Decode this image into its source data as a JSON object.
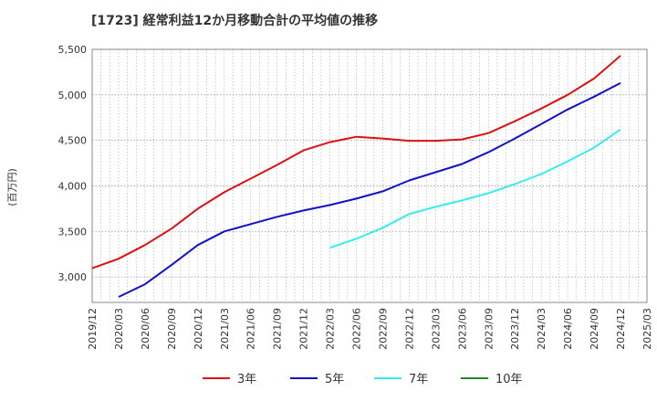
{
  "chart_data": {
    "type": "line",
    "title": "[1723]  経常利益12か月移動合計の平均値の推移",
    "ylabel": "(百万円)",
    "xlabel": "",
    "ylim": [
      2720,
      5500
    ],
    "yticks": [
      3000,
      3500,
      4000,
      4500,
      5000,
      5500
    ],
    "ytick_labels": [
      "3,000",
      "3,500",
      "4,000",
      "4,500",
      "5,000",
      "5,500"
    ],
    "x_range": [
      "2019-12",
      "2025-03"
    ],
    "x_tick_labels": [
      "2019/12",
      "2020/03",
      "2020/06",
      "2020/09",
      "2020/12",
      "2021/03",
      "2021/06",
      "2021/09",
      "2021/12",
      "2022/03",
      "2022/06",
      "2022/09",
      "2022/12",
      "2023/03",
      "2023/06",
      "2023/09",
      "2023/12",
      "2024/03",
      "2024/06",
      "2024/09",
      "2024/12",
      "2025/03"
    ],
    "grid": true,
    "legend_position": "bottom",
    "series": [
      {
        "name": "3年",
        "color": "#dd1111",
        "points": [
          [
            "2019-12",
            3095
          ],
          [
            "2020-03",
            3200
          ],
          [
            "2020-06",
            3350
          ],
          [
            "2020-09",
            3530
          ],
          [
            "2020-12",
            3750
          ],
          [
            "2021-03",
            3930
          ],
          [
            "2021-06",
            4080
          ],
          [
            "2021-09",
            4230
          ],
          [
            "2021-12",
            4390
          ],
          [
            "2022-03",
            4480
          ],
          [
            "2022-06",
            4540
          ],
          [
            "2022-09",
            4520
          ],
          [
            "2022-12",
            4495
          ],
          [
            "2023-03",
            4495
          ],
          [
            "2023-06",
            4510
          ],
          [
            "2023-09",
            4580
          ],
          [
            "2023-12",
            4710
          ],
          [
            "2024-03",
            4850
          ],
          [
            "2024-06",
            5000
          ],
          [
            "2024-09",
            5180
          ],
          [
            "2024-12",
            5430
          ]
        ]
      },
      {
        "name": "5年",
        "color": "#1111cc",
        "points": [
          [
            "2020-03",
            2780
          ],
          [
            "2020-06",
            2920
          ],
          [
            "2020-09",
            3130
          ],
          [
            "2020-12",
            3350
          ],
          [
            "2021-03",
            3500
          ],
          [
            "2021-06",
            3580
          ],
          [
            "2021-09",
            3660
          ],
          [
            "2021-12",
            3730
          ],
          [
            "2022-03",
            3790
          ],
          [
            "2022-06",
            3860
          ],
          [
            "2022-09",
            3940
          ],
          [
            "2022-12",
            4060
          ],
          [
            "2023-03",
            4150
          ],
          [
            "2023-06",
            4240
          ],
          [
            "2023-09",
            4370
          ],
          [
            "2023-12",
            4520
          ],
          [
            "2024-03",
            4680
          ],
          [
            "2024-06",
            4840
          ],
          [
            "2024-09",
            4980
          ],
          [
            "2024-12",
            5130
          ]
        ]
      },
      {
        "name": "7年",
        "color": "#33eeee",
        "points": [
          [
            "2022-03",
            3320
          ],
          [
            "2022-06",
            3420
          ],
          [
            "2022-09",
            3540
          ],
          [
            "2022-12",
            3690
          ],
          [
            "2023-03",
            3770
          ],
          [
            "2023-06",
            3840
          ],
          [
            "2023-09",
            3920
          ],
          [
            "2023-12",
            4020
          ],
          [
            "2024-03",
            4130
          ],
          [
            "2024-06",
            4270
          ],
          [
            "2024-09",
            4420
          ],
          [
            "2024-12",
            4620
          ]
        ]
      },
      {
        "name": "10年",
        "color": "#228822",
        "points": []
      }
    ]
  }
}
